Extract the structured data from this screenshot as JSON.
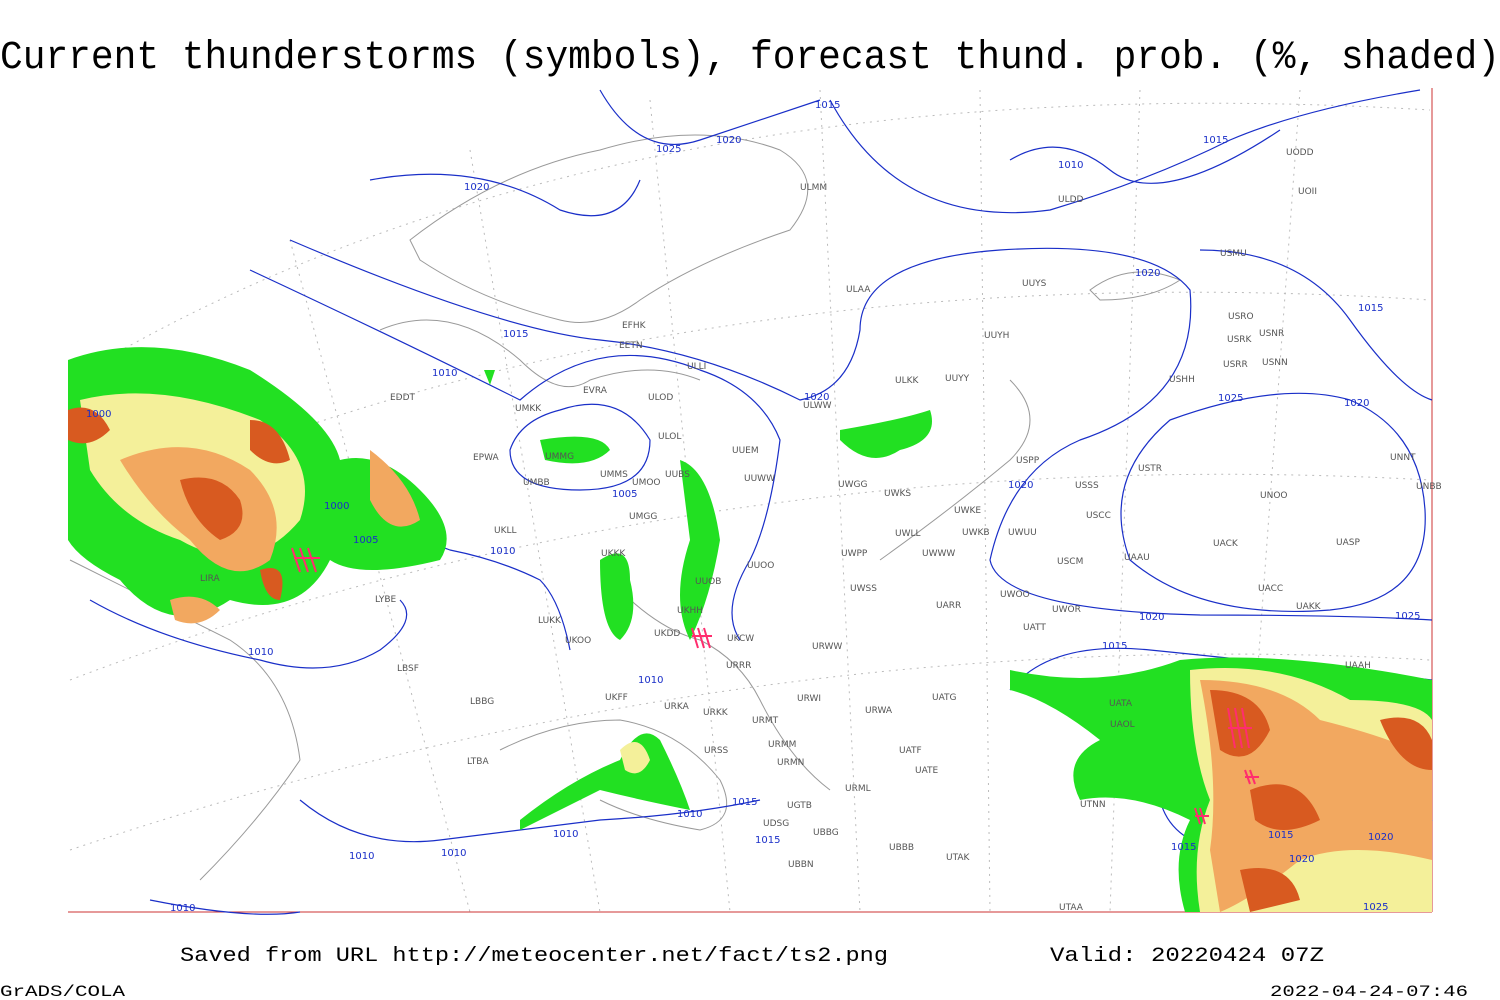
{
  "title": "Current thunderstorms (symbols), forecast thund. prob. (%, shaded)",
  "footer": {
    "saved": "Saved from URL http://meteocenter.net/fact/ts2.png",
    "valid": "Valid: 20220424 07Z",
    "software": "GrADS/COLA",
    "timestamp": "2022-04-24-07:46"
  },
  "stations": [
    "ULMM",
    "ULAA",
    "UUYS",
    "UUYH",
    "ULKK",
    "UUYY",
    "ULWW",
    "UUEM",
    "UUWW",
    "UWGG",
    "UWKS",
    "UWKE",
    "UWKB",
    "UWLL",
    "UWUU",
    "UWWW",
    "UWPP",
    "USCM",
    "UAAU",
    "UUOO",
    "UUOB",
    "UWSS",
    "UARR",
    "UWOO",
    "UWOR",
    "UATT",
    "UKHH",
    "UKDD",
    "UKCW",
    "URWW",
    "URRR",
    "URWI",
    "UATG",
    "URWA",
    "URMT",
    "URMM",
    "URMN",
    "UATE",
    "UATF",
    "URML",
    "UGTB",
    "UDSG",
    "UBBG",
    "UBBB",
    "UTAK",
    "UBBN",
    "UTAA",
    "UTNN",
    "UATA",
    "UAOL",
    "UKKK",
    "UKLL",
    "UKOO",
    "UKFF",
    "URKA",
    "URKK",
    "URSS",
    "LUKK",
    "LIRA",
    "LYBE",
    "LBSF",
    "LBBG",
    "LTBA",
    "UMBB",
    "UMMG",
    "UMMS",
    "UMOO",
    "UMGG",
    "UMKK",
    "UUBS",
    "ULOL",
    "ULOD",
    "EVRA",
    "EFHK",
    "EETN",
    "ULLI",
    "EPWA",
    "EDDT",
    "USSS",
    "USTR",
    "USPP",
    "USCC",
    "UACC",
    "UAKK",
    "UACK",
    "UASP",
    "UNOO",
    "UNNT",
    "UNBB",
    "UAAH",
    "USHH",
    "USRR",
    "USNN",
    "USRK",
    "USNR",
    "USRO",
    "USMU",
    "ULDD",
    "UODD",
    "UOII"
  ],
  "isobar_labels": [
    "1015",
    "1025",
    "1020",
    "1020",
    "1010",
    "1015",
    "1020",
    "1015",
    "1015",
    "1010",
    "1020",
    "1025",
    "1020",
    "1000",
    "1000",
    "1005",
    "1005",
    "1010",
    "1020",
    "1020",
    "1025",
    "1010",
    "1010",
    "1015",
    "1015",
    "1010",
    "1010",
    "1015",
    "1010",
    "1010",
    "1010",
    "1015",
    "1020",
    "1015",
    "1020",
    "1025"
  ]
}
